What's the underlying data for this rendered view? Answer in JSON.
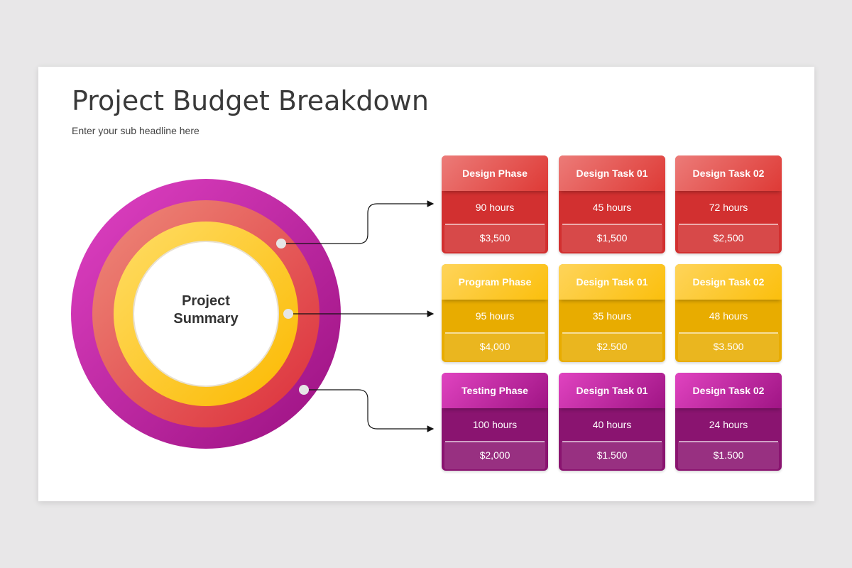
{
  "title": "Project Budget Breakdown",
  "subtitle": "Enter your sub headline here",
  "center": {
    "line1": "Project",
    "line2": "Summary"
  },
  "colors": {
    "red": "#d23030",
    "yellow": "#fbbf0d",
    "magenta": "#a01585"
  },
  "rows": [
    {
      "color": "red",
      "cards": [
        {
          "title": "Design Phase",
          "hours": "90 hours",
          "price": "$3,500"
        },
        {
          "title": "Design Task 01",
          "hours": "45 hours",
          "price": "$1,500"
        },
        {
          "title": "Design Task 02",
          "hours": "72 hours",
          "price": "$2,500"
        }
      ]
    },
    {
      "color": "yellow",
      "cards": [
        {
          "title": "Program Phase",
          "hours": "95 hours",
          "price": "$4,000"
        },
        {
          "title": "Design Task 01",
          "hours": "35 hours",
          "price": "$2.500"
        },
        {
          "title": "Design Task 02",
          "hours": "48 hours",
          "price": "$3.500"
        }
      ]
    },
    {
      "color": "magenta",
      "cards": [
        {
          "title": "Testing Phase",
          "hours": "100 hours",
          "price": "$2,000"
        },
        {
          "title": "Design Task 01",
          "hours": "40 hours",
          "price": "$1.500"
        },
        {
          "title": "Design Task 02",
          "hours": "24 hours",
          "price": "$1.500"
        }
      ]
    }
  ]
}
